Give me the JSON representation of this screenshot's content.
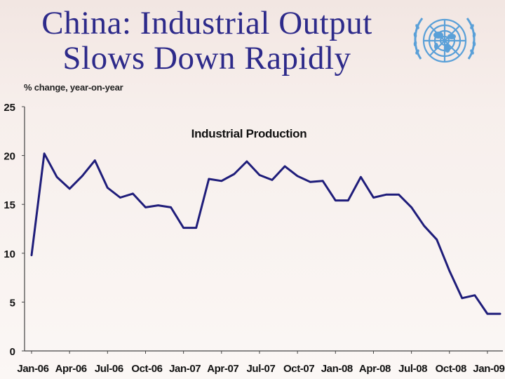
{
  "slide": {
    "title_line1": "China: Industrial Output",
    "title_line2": "Slows Down Rapidly",
    "logo_name": "united-nations-emblem"
  },
  "colors": {
    "title": "#2d2a8a",
    "line": "#1f1d7a",
    "logo": "#5aa0d8"
  },
  "chart_data": {
    "type": "line",
    "title": "Industrial Production",
    "ylabel": "% change, year-on-year",
    "xlabel": "",
    "ylim": [
      0,
      25
    ],
    "yticks": [
      0,
      5,
      10,
      15,
      20,
      25
    ],
    "xtick_labels": [
      "Jan-06",
      "Apr-06",
      "Jul-06",
      "Oct-06",
      "Jan-07",
      "Apr-07",
      "Jul-07",
      "Oct-07",
      "Jan-08",
      "Apr-08",
      "Jul-08",
      "Oct-08",
      "Jan-09"
    ],
    "grid": false,
    "legend": "none",
    "series": [
      {
        "x": [
          "Jan-06",
          "Feb-06",
          "Mar-06",
          "Apr-06",
          "May-06",
          "Jun-06",
          "Jul-06",
          "Aug-06",
          "Sep-06",
          "Oct-06",
          "Nov-06",
          "Dec-06",
          "Jan-07",
          "Feb-07",
          "Mar-07",
          "Apr-07",
          "May-07",
          "Jun-07",
          "Jul-07",
          "Aug-07",
          "Sep-07",
          "Oct-07",
          "Nov-07",
          "Dec-07",
          "Jan-08",
          "Feb-08",
          "Mar-08",
          "Apr-08",
          "May-08",
          "Jun-08",
          "Jul-08",
          "Aug-08",
          "Sep-08",
          "Oct-08",
          "Nov-08",
          "Dec-08",
          "Jan-09",
          "Feb-09"
        ],
        "values": [
          9.8,
          20.2,
          17.8,
          16.6,
          17.9,
          19.5,
          16.7,
          15.7,
          16.1,
          14.7,
          14.9,
          14.7,
          12.6,
          12.6,
          17.6,
          17.4,
          18.1,
          19.4,
          18.0,
          17.5,
          18.9,
          17.9,
          17.3,
          17.4,
          15.4,
          15.4,
          17.8,
          15.7,
          16.0,
          16.0,
          14.7,
          12.8,
          11.4,
          8.2,
          5.4,
          5.7,
          3.8,
          3.8
        ]
      }
    ]
  }
}
